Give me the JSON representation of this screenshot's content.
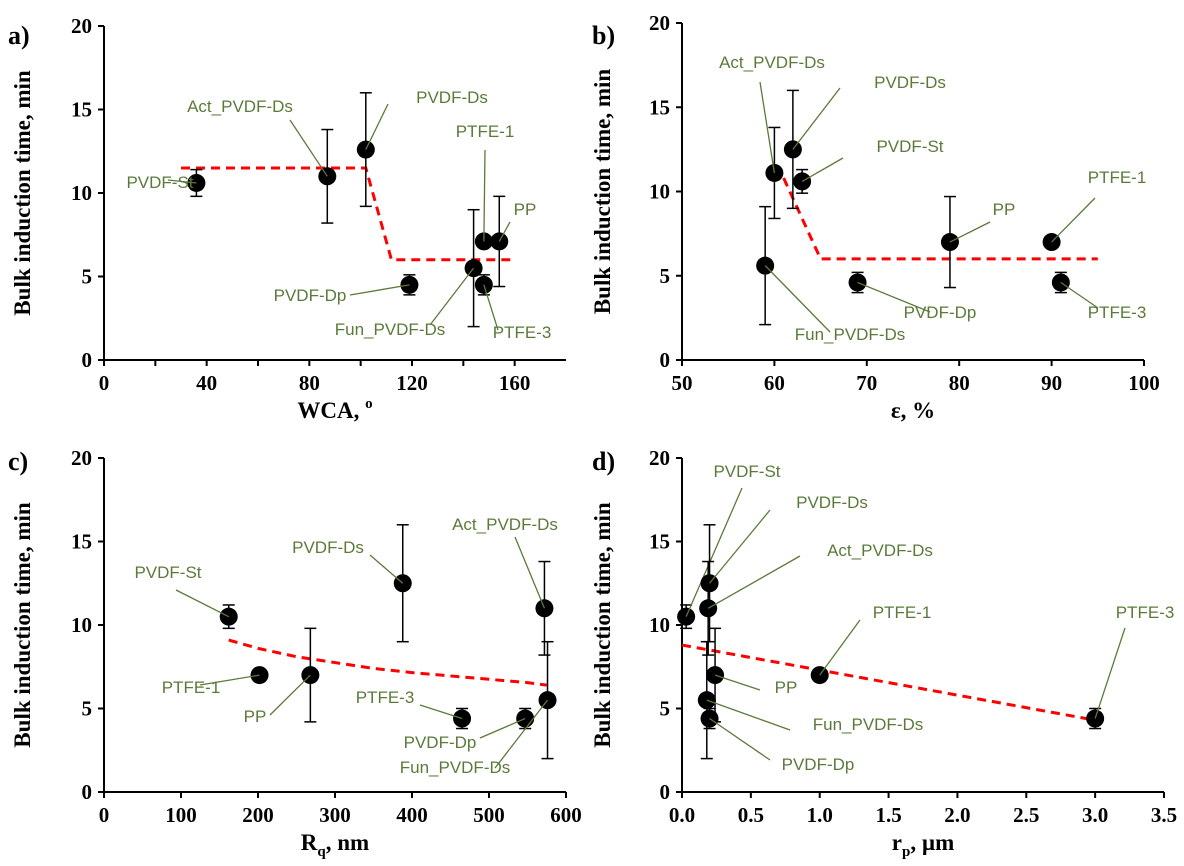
{
  "chart_data": [
    {
      "type": "scatter",
      "panel_label": "a)",
      "xlabel": "WCA, ",
      "xlabel_sup": "o",
      "ylabel": "Bulk induction time, min",
      "xlim": [
        0,
        180
      ],
      "ylim": [
        0,
        20
      ],
      "xticks": [
        0,
        40,
        80,
        120,
        160
      ],
      "yticks": [
        0,
        5,
        10,
        15,
        20
      ],
      "points": [
        {
          "label": "PVDF-St",
          "x": 36,
          "y": 10.6,
          "err": 0.8
        },
        {
          "label": "Act_PVDF-Ds",
          "x": 87,
          "y": 11.0,
          "err": 2.8
        },
        {
          "label": "PVDF-Ds",
          "x": 102,
          "y": 12.6,
          "err": 3.4
        },
        {
          "label": "PVDF-Dp",
          "x": 119,
          "y": 4.5,
          "err": 0.6
        },
        {
          "label": "Fun_PVDF-Ds",
          "x": 144,
          "y": 5.5,
          "err": 3.5
        },
        {
          "label": "PTFE-3",
          "x": 148,
          "y": 4.5,
          "err": 0.6
        },
        {
          "label": "PTFE-1",
          "x": 148,
          "y": 7.1,
          "err": 0
        },
        {
          "label": "PP",
          "x": 154,
          "y": 7.1,
          "err": 2.7
        }
      ],
      "trend": [
        [
          30,
          11.5
        ],
        [
          102,
          11.5
        ],
        [
          112,
          6.0
        ],
        [
          160,
          6.0
        ]
      ]
    },
    {
      "type": "scatter",
      "panel_label": "b)",
      "xlabel": "ε, %",
      "ylabel": "Bulk induction time, min",
      "xlim": [
        50,
        100
      ],
      "ylim": [
        0,
        20
      ],
      "xticks": [
        50,
        60,
        70,
        80,
        90,
        100
      ],
      "yticks": [
        0,
        5,
        10,
        15,
        20
      ],
      "points": [
        {
          "label": "Act_PVDF-Ds",
          "x": 60,
          "y": 11.1,
          "err": 2.7
        },
        {
          "label": "PVDF-Ds",
          "x": 62,
          "y": 12.5,
          "err": 3.5
        },
        {
          "label": "PVDF-St",
          "x": 63,
          "y": 10.6,
          "err": 0.7
        },
        {
          "label": "Fun_PVDF-Ds",
          "x": 59,
          "y": 5.6,
          "err": 3.5
        },
        {
          "label": "PVDF-Dp",
          "x": 69,
          "y": 4.6,
          "err": 0.6
        },
        {
          "label": "PP",
          "x": 79,
          "y": 7.0,
          "err": 2.7
        },
        {
          "label": "PTFE-1",
          "x": 90,
          "y": 7.0,
          "err": 0
        },
        {
          "label": "PTFE-3",
          "x": 91,
          "y": 4.6,
          "err": 0.6
        }
      ],
      "trend": [
        [
          61,
          10.8
        ],
        [
          65,
          6.0
        ],
        [
          95,
          6.0
        ]
      ]
    },
    {
      "type": "scatter",
      "panel_label": "c)",
      "xlabel": "R",
      "xlabel_sub": "q",
      "xlabel_unit": ", nm",
      "ylabel": "Bulk induction time, min",
      "xlim": [
        0,
        600
      ],
      "ylim": [
        0,
        20
      ],
      "xticks": [
        0,
        100,
        200,
        300,
        400,
        500,
        600
      ],
      "yticks": [
        0,
        5,
        10,
        15,
        20
      ],
      "points": [
        {
          "label": "PVDF-St",
          "x": 162,
          "y": 10.5,
          "err": 0.7
        },
        {
          "label": "PTFE-1",
          "x": 202,
          "y": 7.0,
          "err": 0
        },
        {
          "label": "PP",
          "x": 268,
          "y": 7.0,
          "err": 2.8
        },
        {
          "label": "PVDF-Ds",
          "x": 388,
          "y": 12.5,
          "err": 3.5
        },
        {
          "label": "PTFE-3",
          "x": 465,
          "y": 4.4,
          "err": 0.6
        },
        {
          "label": "PVDF-Dp",
          "x": 547,
          "y": 4.4,
          "err": 0.6
        },
        {
          "label": "Act_PVDF-Ds",
          "x": 572,
          "y": 11.0,
          "err": 2.8
        },
        {
          "label": "Fun_PVDF-Ds",
          "x": 576,
          "y": 5.5,
          "err": 3.5
        }
      ],
      "trend": [
        [
          162,
          9.1
        ],
        [
          200,
          8.6
        ],
        [
          250,
          8.1
        ],
        [
          300,
          7.75
        ],
        [
          350,
          7.4
        ],
        [
          400,
          7.15
        ],
        [
          450,
          6.95
        ],
        [
          500,
          6.75
        ],
        [
          550,
          6.55
        ],
        [
          575,
          6.4
        ]
      ]
    },
    {
      "type": "scatter",
      "panel_label": "d)",
      "xlabel": "r",
      "xlabel_sub": "p",
      "xlabel_unit": ", µm",
      "ylabel": "Bulk induction time, min",
      "xlim": [
        0,
        3.5
      ],
      "ylim": [
        0,
        20
      ],
      "xticks": [
        "0.0",
        "0.5",
        "1.0",
        "1.5",
        "2.0",
        "2.5",
        "3.0",
        "3.5"
      ],
      "yticks": [
        0,
        5,
        10,
        15,
        20
      ],
      "points": [
        {
          "label": "PVDF-St",
          "x": 0.03,
          "y": 10.5,
          "err": 0.7
        },
        {
          "label": "PVDF-Ds",
          "x": 0.2,
          "y": 12.5,
          "err": 3.5
        },
        {
          "label": "Act_PVDF-Ds",
          "x": 0.19,
          "y": 11.0,
          "err": 2.8
        },
        {
          "label": "PP",
          "x": 0.24,
          "y": 7.0,
          "err": 2.8
        },
        {
          "label": "Fun_PVDF-Ds",
          "x": 0.18,
          "y": 5.5,
          "err": 3.5
        },
        {
          "label": "PVDF-Dp",
          "x": 0.2,
          "y": 4.4,
          "err": 0.6
        },
        {
          "label": "PTFE-1",
          "x": 1.0,
          "y": 7.0,
          "err": 0
        },
        {
          "label": "PTFE-3",
          "x": 3.0,
          "y": 4.4,
          "err": 0.6
        }
      ],
      "trend": [
        [
          0.0,
          8.8
        ],
        [
          3.0,
          4.3
        ]
      ]
    }
  ],
  "colors": {
    "marker": "#000000",
    "trend": "#ff0000",
    "annotation": "#5b7a3a"
  }
}
